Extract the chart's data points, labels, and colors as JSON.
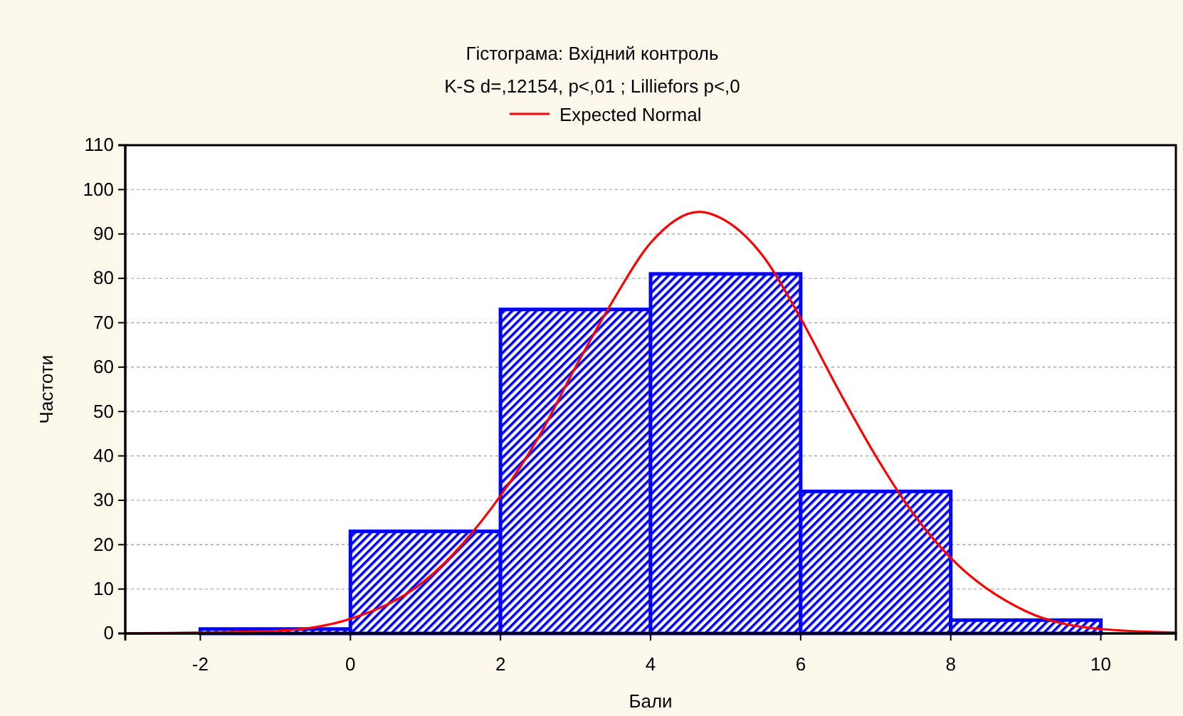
{
  "chart_data": {
    "type": "histogram",
    "title": "Гістограма: Вхідний контроль",
    "subtitle": "K-S d=,12154, p<,01 ; Lilliefors p<,0",
    "xlabel": "Бали",
    "ylabel": "Частоти",
    "bins": [
      -2,
      0,
      2,
      4,
      6,
      8,
      10
    ],
    "series": [
      {
        "color": "#0000ff",
        "values": [
          1,
          23,
          73,
          81,
          32,
          3
        ]
      },
      {
        "type": "line",
        "name": "Expected Normal",
        "color": "#ff0000",
        "x": [
          -3,
          -2,
          -1,
          0,
          1,
          2,
          2.5,
          3,
          3.5,
          4,
          4.65,
          5,
          5.5,
          6,
          6.5,
          7,
          7.5,
          8,
          9,
          10,
          11
        ],
        "values": [
          0,
          null,
          0.6,
          3.3,
          12,
          31,
          44,
          60,
          75,
          88,
          95,
          93,
          85,
          71,
          55,
          40,
          27,
          17,
          5,
          1,
          0.2
        ]
      }
    ],
    "xlim": [
      -3,
      11
    ],
    "xticks": [
      -2,
      0,
      2,
      4,
      6,
      8,
      10
    ],
    "ylim": [
      0,
      110
    ],
    "yticks": [
      0,
      10,
      20,
      30,
      40,
      50,
      60,
      70,
      80,
      90,
      100,
      110
    ],
    "grid": "y",
    "legend": "top"
  }
}
